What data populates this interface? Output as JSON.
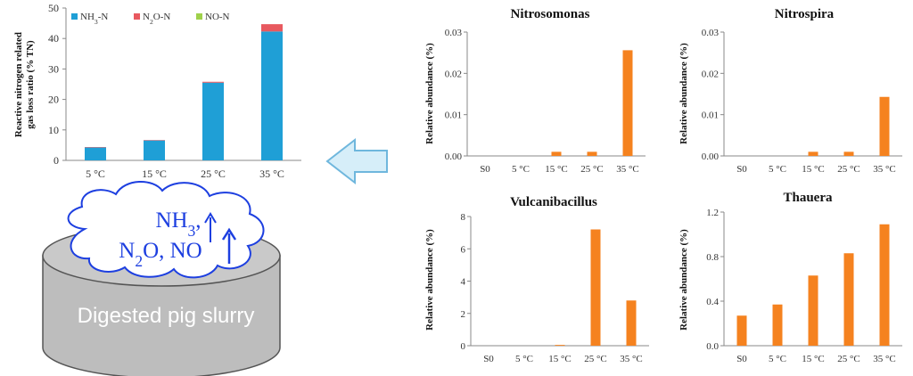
{
  "colors": {
    "nh3": "#1f9fd6",
    "n2o": "#e8595f",
    "no": "#9fd14b",
    "bars": "#f5821f",
    "arrow_fill": "#d6eef9",
    "arrow_stroke": "#6fb7dd",
    "cloud_stroke": "#1d3fe0",
    "cylinder_fill": "#bdbdbd",
    "cylinder_top": "#c9c9c9",
    "cylinder_stroke": "#555555"
  },
  "illustration": {
    "gas_line1": "NH3,",
    "gas_line2": "N2O, NO",
    "slurry_label": "Digested pig slurry",
    "icons": [
      "left-arrow-icon",
      "cloud-icon",
      "up-arrow-icon",
      "cylinder-icon"
    ]
  },
  "chart_data": [
    {
      "type": "bar",
      "stacked": true,
      "title": "",
      "ylabel": "Reactive nitrogen related gas loss ratio (% TN)",
      "xlabel": "",
      "categories": [
        "5 °C",
        "15 °C",
        "25 °C",
        "35 °C"
      ],
      "ylim": [
        0,
        50
      ],
      "yticks": [
        "0",
        "10",
        "20",
        "30",
        "40",
        "50"
      ],
      "legend_position": "top",
      "series": [
        {
          "name": "NH3-N",
          "values": [
            4.3,
            6.6,
            25.5,
            42.3
          ]
        },
        {
          "name": "N2O-N",
          "values": [
            0.05,
            0.05,
            0.3,
            2.4
          ]
        },
        {
          "name": "NO-N",
          "values": [
            0.0,
            0.0,
            0.0,
            0.0
          ]
        }
      ]
    },
    {
      "type": "bar",
      "title": "Nitrosomonas",
      "ylabel": "Relative abundance (%)",
      "categories": [
        "S0",
        "5 °C",
        "15 °C",
        "25 °C",
        "35 °C"
      ],
      "values": [
        0.0,
        0.0,
        0.001,
        0.001,
        0.0256
      ],
      "ylim": [
        0,
        0.03
      ],
      "yticks": [
        "0.00",
        "0.01",
        "0.02",
        "0.03"
      ]
    },
    {
      "type": "bar",
      "title": "Nitrospira",
      "ylabel": "Relative abundance (%)",
      "categories": [
        "S0",
        "5 °C",
        "15 °C",
        "25 °C",
        "35 °C"
      ],
      "values": [
        0.0,
        0.0,
        0.001,
        0.001,
        0.0143
      ],
      "ylim": [
        0,
        0.03
      ],
      "yticks": [
        "0.00",
        "0.01",
        "0.02",
        "0.03"
      ]
    },
    {
      "type": "bar",
      "title": "Vulcanibacillus",
      "ylabel": "Relative abundance (%)",
      "categories": [
        "S0",
        "5 °C",
        "15 °C",
        "25 °C",
        "35 °C"
      ],
      "values": [
        0.0,
        0.0,
        0.05,
        7.2,
        2.8
      ],
      "ylim": [
        0,
        8
      ],
      "yticks": [
        "0",
        "2",
        "4",
        "6",
        "8"
      ]
    },
    {
      "type": "bar",
      "title": "Thauera",
      "ylabel": "Relative abundance (%)",
      "categories": [
        "S0",
        "5 °C",
        "15 °C",
        "25 °C",
        "35 °C"
      ],
      "values": [
        0.27,
        0.37,
        0.63,
        0.83,
        1.09
      ],
      "ylim": [
        0,
        1.2
      ],
      "yticks": [
        "0.0",
        "0.4",
        "0.8",
        "1.2"
      ]
    }
  ]
}
